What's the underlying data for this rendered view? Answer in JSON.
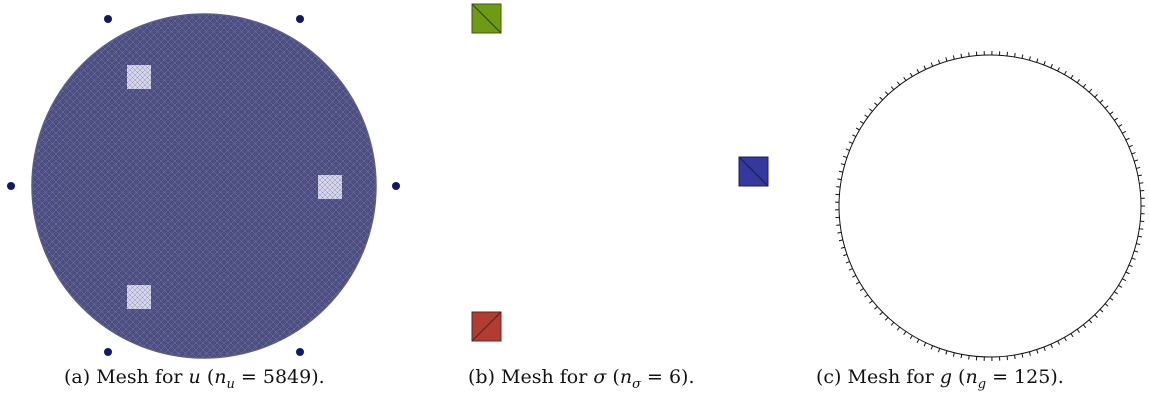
{
  "figures": [
    {
      "caption_label": "(a)",
      "caption_text": "Mesh for",
      "var_symbol": "u",
      "count_subscript": "u",
      "count_value": "5849",
      "colors": {
        "mesh_fill": "#4a4b7e",
        "hole_fill": "#d6d6ea",
        "node": "#141866"
      }
    },
    {
      "caption_label": "(b)",
      "caption_text": "Mesh for",
      "var_symbol": "σ",
      "count_subscript": "σ",
      "count_value": "6",
      "colors": {
        "green": "#6e9b12",
        "blue": "#35389c",
        "red": "#b23b33"
      }
    },
    {
      "caption_label": "(c)",
      "caption_text": "Mesh for",
      "var_symbol": "g",
      "count_subscript": "g",
      "count_value": "125",
      "colors": {
        "circle": "#111111"
      }
    }
  ]
}
